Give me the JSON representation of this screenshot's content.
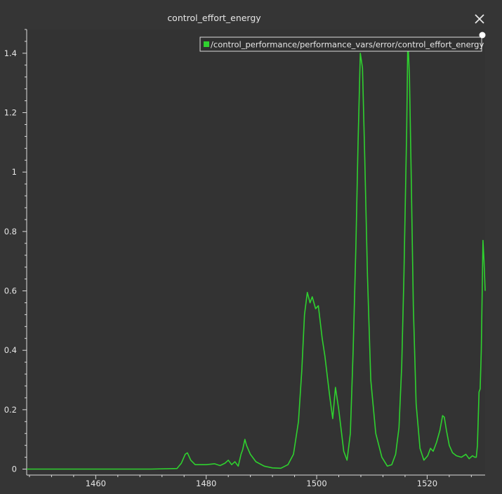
{
  "window": {
    "title": "control_effort_energy",
    "close_icon": "close-icon"
  },
  "colors": {
    "background": "#353535",
    "plot_background": "#333333",
    "series": "#2fd12f",
    "axis": "#dcdcdc"
  },
  "chart_data": {
    "type": "line",
    "title": "control_effort_energy",
    "xlabel": "",
    "ylabel": "",
    "xlim": [
      1447.5,
      1530.5
    ],
    "ylim": [
      -0.02,
      1.48
    ],
    "xticks": [
      1460,
      1480,
      1500,
      1520
    ],
    "yticks": [
      0,
      0.2,
      0.4,
      0.6,
      0.8,
      1,
      1.2,
      1.4
    ],
    "ytick_labels": [
      "0",
      "0.2",
      "0.4",
      "0.6",
      "0.8",
      "1",
      "1.2",
      "1.4"
    ],
    "grid": false,
    "legend_position": "top-right",
    "series": [
      {
        "name": "/control_performance/performance_vars/error/control_effort_energy",
        "color": "#2fd12f",
        "x": [
          1447.5,
          1460,
          1470,
          1474.7,
          1475.5,
          1476.2,
          1476.6,
          1477.2,
          1478,
          1480,
          1481.5,
          1482.5,
          1483.4,
          1484,
          1484.6,
          1485.2,
          1485.8,
          1486.3,
          1486.6,
          1487.0,
          1487.3,
          1488,
          1489,
          1490.5,
          1492,
          1493.5,
          1494.8,
          1495.8,
          1496.7,
          1497.3,
          1497.8,
          1498.3,
          1498.8,
          1499.2,
          1499.8,
          1500.3,
          1501.0,
          1501.5,
          1502.0,
          1502.4,
          1502.9,
          1503.4,
          1504.0,
          1504.9,
          1505.5,
          1506.1,
          1506.6,
          1507.1,
          1507.5,
          1507.9,
          1508.3,
          1508.7,
          1509.2,
          1509.8,
          1510.7,
          1511.8,
          1512.8,
          1513.6,
          1514.3,
          1514.9,
          1515.4,
          1515.8,
          1516.1,
          1516.3,
          1516.5,
          1516.8,
          1517.1,
          1517.5,
          1518.0,
          1518.7,
          1519.4,
          1520.1,
          1520.6,
          1521.1,
          1521.7,
          1522.3,
          1522.8,
          1523.1,
          1523.5,
          1524.0,
          1524.6,
          1525.3,
          1526.2,
          1527.0,
          1527.6,
          1528.2,
          1528.6,
          1528.9,
          1529.1,
          1529.4,
          1529.6,
          1529.8,
          1530.1,
          1530.3,
          1530.5
        ],
        "y": [
          0,
          0,
          0,
          0.002,
          0.02,
          0.05,
          0.055,
          0.03,
          0.015,
          0.015,
          0.018,
          0.012,
          0.02,
          0.03,
          0.015,
          0.025,
          0.01,
          0.05,
          0.065,
          0.1,
          0.08,
          0.05,
          0.025,
          0.01,
          0.004,
          0.003,
          0.015,
          0.05,
          0.16,
          0.33,
          0.52,
          0.595,
          0.56,
          0.58,
          0.54,
          0.55,
          0.44,
          0.38,
          0.3,
          0.24,
          0.17,
          0.275,
          0.2,
          0.06,
          0.03,
          0.12,
          0.4,
          0.75,
          1.1,
          1.4,
          1.35,
          1.05,
          0.65,
          0.3,
          0.12,
          0.04,
          0.01,
          0.015,
          0.05,
          0.14,
          0.35,
          0.65,
          0.95,
          1.15,
          1.45,
          1.32,
          1.0,
          0.55,
          0.22,
          0.07,
          0.03,
          0.045,
          0.07,
          0.06,
          0.09,
          0.13,
          0.18,
          0.175,
          0.13,
          0.08,
          0.055,
          0.045,
          0.04,
          0.05,
          0.035,
          0.045,
          0.04,
          0.04,
          0.08,
          0.26,
          0.27,
          0.4,
          0.77,
          0.7,
          0.6
        ]
      }
    ]
  }
}
